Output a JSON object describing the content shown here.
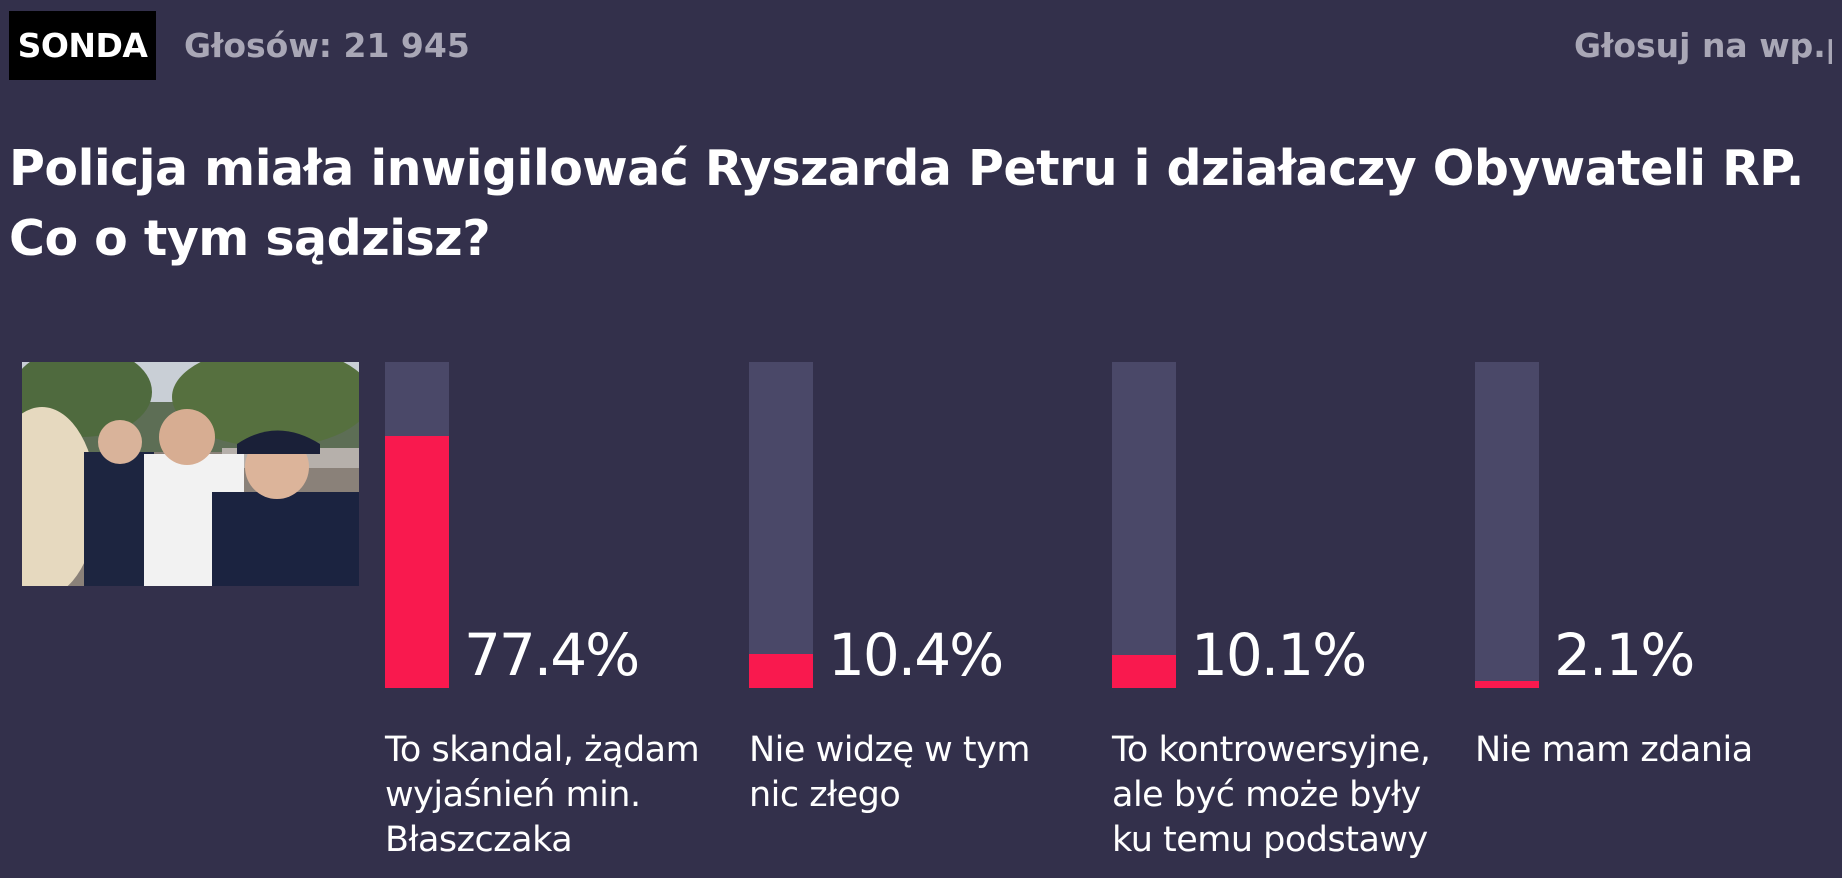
{
  "header": {
    "badge": "SONDA",
    "votes": "Głosów: 21 945",
    "vote_link": "Głosuj na wp.pl"
  },
  "question": "Policja miała inwigilować Ryszarda Petru i działaczy Obywateli RP. Co o tym sądzisz?",
  "colors": {
    "background": "#33304b",
    "bar_track": "#4a4868",
    "bar_fill": "#f9194e",
    "muted_text": "#a9a7b6"
  },
  "chart_data": {
    "type": "bar",
    "categories": [
      "To skandal, żądam wyjaśnień min. Błaszczaka",
      "Nie widzę w tym nic złego",
      "To kontrowersyjne, ale być może były ku temu podstawy",
      "Nie mam zdania"
    ],
    "values": [
      77.4,
      10.4,
      10.1,
      2.1
    ],
    "value_labels": [
      "77.4%",
      "10.4%",
      "10.1%",
      "2.1%"
    ],
    "ylim": [
      0,
      100
    ],
    "legend": "none",
    "grid": false
  }
}
